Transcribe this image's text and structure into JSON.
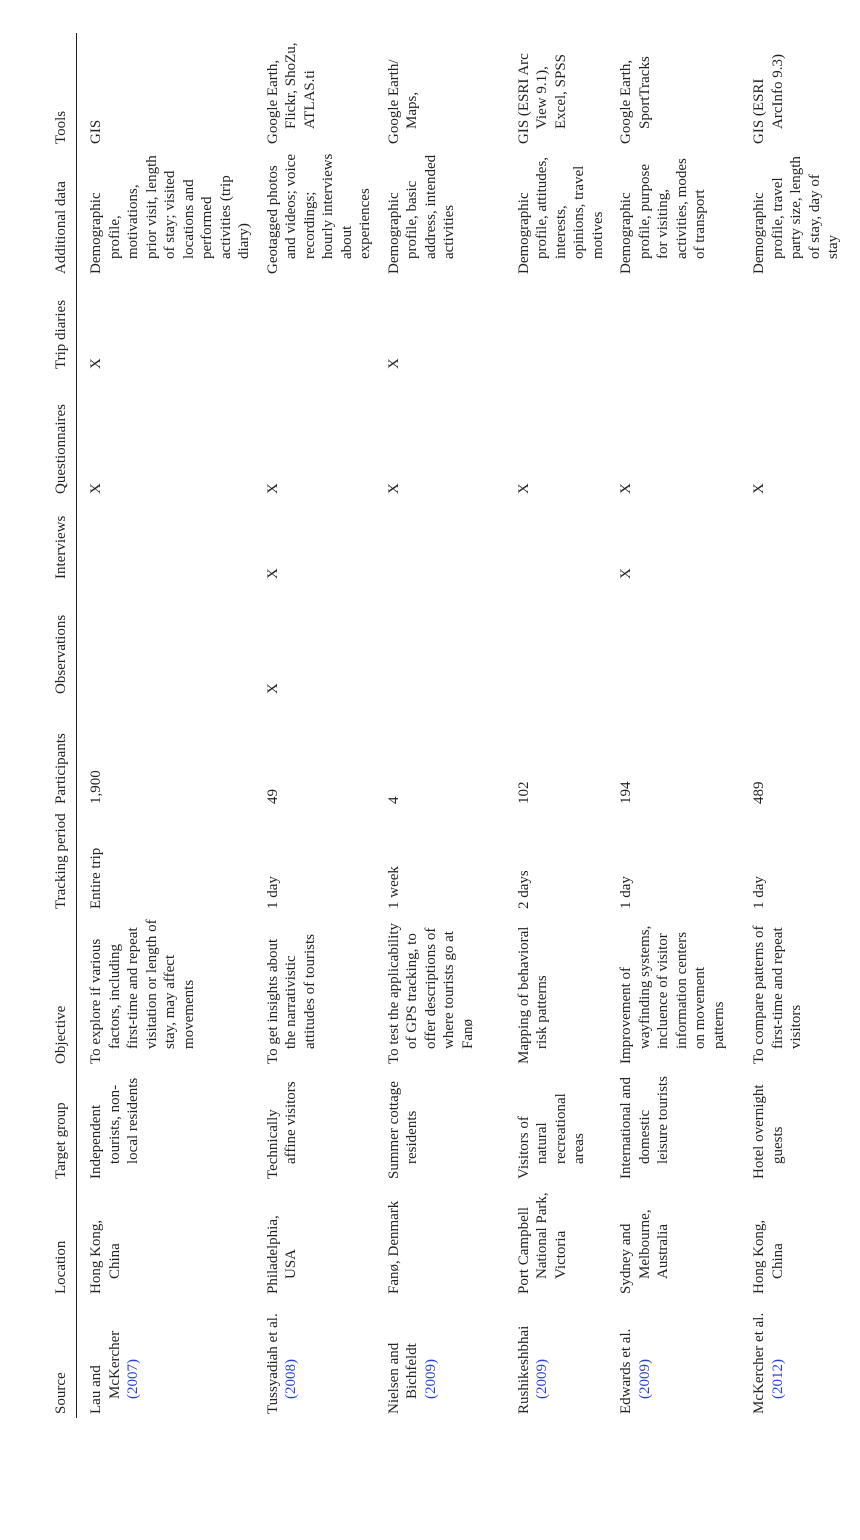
{
  "table": {
    "headers": [
      "Source",
      "Location",
      "Target group",
      "Objective",
      "Tracking period",
      "Participants",
      "Observations",
      "Interviews",
      "Questionnaires",
      "Trip diaries",
      "Additional data",
      "Tools"
    ],
    "rows": [
      [
        {
          "authors": "Lau and McKercher",
          "year": "(2007)"
        },
        "Hong Kong, China",
        "Independent tourists, non-local residents",
        "To explore if various factors, including first-time and repeat visitation or length of stay, may affect movements",
        "Entire trip",
        "1,900",
        "",
        "",
        "X",
        "X",
        "Demographic profile, motivations, prior visit, length of stay; visited locations and performed activities (trip diary)",
        "GIS"
      ],
      [
        {
          "authors": "Tussyadiah et al.",
          "year": "(2008)"
        },
        "Philadelphia, USA",
        "Technically affine visitors",
        "To get insights about the narrativistic attitudes of tourists",
        "1 day",
        "49",
        "X",
        "X",
        "X",
        "",
        "Geotagged photos and videos; voice recordings; hourly interviews about experiences",
        "Google Earth, Flickr, ShoZu, ATLAS.ti"
      ],
      [
        {
          "authors": "Nielsen and Bichfeldt",
          "year": "(2009)"
        },
        "Fanø, Denmark",
        "Summer cottage residents",
        "To test the applicability of GPS tracking, to offer descriptions of where tourists go at Fanø",
        "1 week",
        "4",
        "",
        "",
        "X",
        "X",
        "Demographic profile, basic address, intended activities",
        "Google Earth/ Maps,"
      ],
      [
        {
          "authors": "Rushikeshbhai",
          "year": "(2009)"
        },
        "Port Campbell National Park, Victoria",
        "Visitors of natural recreational areas",
        "Mapping of behavioral risk patterns",
        "2 days",
        "102",
        "",
        "",
        "X",
        "",
        "Demographic profile, attitudes, interests, opinions, travel motives",
        "GIS (ESRI Arc View 9.1), Excel, SPSS"
      ],
      [
        {
          "authors": "Edwards et al.",
          "year": "(2009)"
        },
        "Sydney and Melbourne, Australia",
        "International and domestic leisure tourists",
        "Improvement of wayfinding systems, incluence of visitor information centers on movement patterns",
        "1 day",
        "194",
        "",
        "X",
        "X",
        "",
        "Demographic profile, purpose for visiting, activities, modes of transport",
        "Google Earth, SportTracks"
      ],
      [
        {
          "authors": "McKercher et al.",
          "year": "(2012)"
        },
        "Hong Kong, China",
        "Hotel overnight guests",
        "To compare patterns of first-time and repeat visitors",
        "1 day",
        "489",
        "",
        "",
        "X",
        "",
        "Demographic profile, travel party size, length of stay, day of stay",
        "GIS (ESRI ArcInfo 9.3)"
      ]
    ]
  }
}
